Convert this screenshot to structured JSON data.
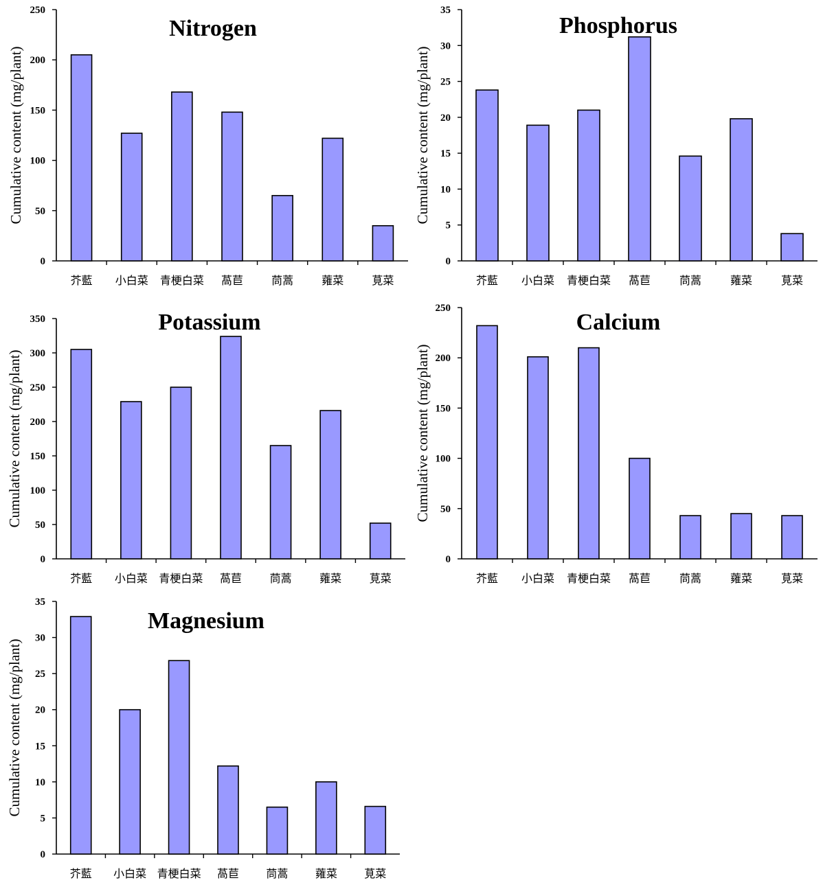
{
  "chart_data": [
    {
      "type": "bar",
      "title": "Nitrogen",
      "ylabel": "Cumulative content (mg/plant)",
      "xlabel": "",
      "categories": [
        "芥藍",
        "小白菜",
        "青梗白菜",
        "萵苣",
        "茼蒿",
        "蕹菜",
        "莧菜"
      ],
      "values": [
        205,
        127,
        168,
        148,
        65,
        122,
        35
      ],
      "ylim": [
        0,
        250
      ],
      "yticks": [
        0,
        50,
        100,
        150,
        200,
        250
      ],
      "grid": false,
      "bar_color": "#9999ff"
    },
    {
      "type": "bar",
      "title": "Phosphorus",
      "ylabel": "Cumulative content (mg/plant)",
      "xlabel": "",
      "categories": [
        "芥藍",
        "小白菜",
        "青梗白菜",
        "萵苣",
        "茼蒿",
        "蕹菜",
        "莧菜"
      ],
      "values": [
        23.8,
        18.9,
        21.0,
        31.2,
        14.6,
        19.8,
        3.8
      ],
      "ylim": [
        0,
        35
      ],
      "yticks": [
        0,
        5,
        10,
        15,
        20,
        25,
        30,
        35
      ],
      "grid": false,
      "bar_color": "#9999ff"
    },
    {
      "type": "bar",
      "title": "Potassium",
      "ylabel": "Cumulative content (mg/plant)",
      "xlabel": "",
      "categories": [
        "芥藍",
        "小白菜",
        "青梗白菜",
        "萵苣",
        "茼蒿",
        "蕹菜",
        "莧菜"
      ],
      "values": [
        305,
        229,
        250,
        324,
        165,
        216,
        52
      ],
      "ylim": [
        0,
        350
      ],
      "yticks": [
        0,
        50,
        100,
        150,
        200,
        250,
        300,
        350
      ],
      "grid": false,
      "bar_color": "#9999ff"
    },
    {
      "type": "bar",
      "title": "Calcium",
      "ylabel": "Cumulative content (mg/plant)",
      "xlabel": "",
      "categories": [
        "芥藍",
        "小白菜",
        "青梗白菜",
        "萵苣",
        "茼蒿",
        "蕹菜",
        "莧菜"
      ],
      "values": [
        232,
        201,
        210,
        100,
        43,
        45,
        43
      ],
      "ylim": [
        0,
        250
      ],
      "yticks": [
        0,
        50,
        100,
        150,
        200,
        250
      ],
      "grid": false,
      "bar_color": "#9999ff"
    },
    {
      "type": "bar",
      "title": "Magnesium",
      "ylabel": "Cumulative content (mg/plant)",
      "xlabel": "",
      "categories": [
        "芥藍",
        "小白菜",
        "青梗白菜",
        "萵苣",
        "茼蒿",
        "蕹菜",
        "莧菜"
      ],
      "values": [
        32.9,
        20.0,
        26.8,
        12.2,
        6.5,
        10.0,
        6.6
      ],
      "ylim": [
        0,
        35
      ],
      "yticks": [
        0,
        5,
        10,
        15,
        20,
        25,
        30,
        35
      ],
      "grid": false,
      "bar_color": "#9999ff"
    }
  ]
}
